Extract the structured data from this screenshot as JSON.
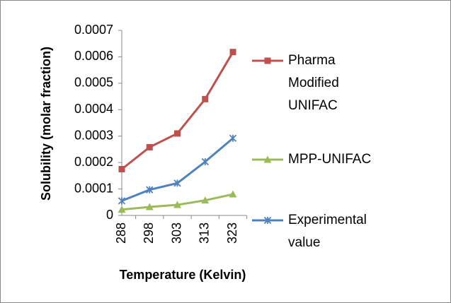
{
  "chart_data": {
    "type": "line",
    "x_label": "Temperature (Kelvin)",
    "y_label": "Solubility (molar fraction)",
    "categories": [
      "288",
      "298",
      "303",
      "313",
      "323"
    ],
    "series": [
      {
        "name": "Pharma Modified UNIFAC",
        "color": "#c0504d",
        "marker": "square",
        "values": [
          0.000175,
          0.000258,
          0.00031,
          0.00044,
          0.000618
        ]
      },
      {
        "name": "MPP-UNIFAC",
        "color": "#9bbb59",
        "marker": "triangle",
        "values": [
          2.2e-05,
          3.2e-05,
          4e-05,
          5.7e-05,
          8e-05
        ]
      },
      {
        "name": "Experimental value",
        "color": "#4f81bd",
        "marker": "star",
        "values": [
          5.5e-05,
          9.7e-05,
          0.000122,
          0.000203,
          0.000292
        ]
      }
    ],
    "ylim": [
      0,
      0.0007
    ],
    "yticks": [
      0,
      0.0001,
      0.0002,
      0.0003,
      0.0004,
      0.0005,
      0.0006,
      0.0007
    ],
    "grid": false,
    "legend": "right"
  }
}
